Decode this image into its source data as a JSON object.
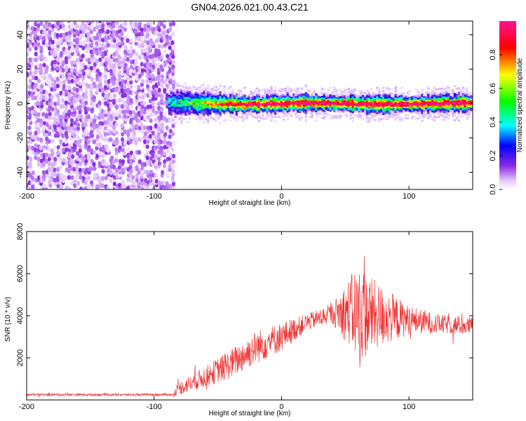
{
  "title": "GN04.2026.021.00.43.C21",
  "chart_data": [
    {
      "type": "heatmap",
      "xlabel": "Height of straight line (km)",
      "ylabel": "Frequency (Hz)",
      "xlim": [
        -200,
        150
      ],
      "ylim": [
        -50,
        48
      ],
      "xticks": [
        -200,
        -100,
        0,
        100
      ],
      "yticks": [
        -40,
        -20,
        0,
        20,
        40
      ],
      "colorbar": {
        "label": "Normalized spectral amplitude",
        "range": [
          0,
          1
        ],
        "ticks": [
          0.0,
          0.2,
          0.4,
          0.6,
          0.8
        ],
        "colors": [
          "#ffffff",
          "#d9b3ff",
          "#8a2be2",
          "#0000ff",
          "#00ffff",
          "#00ff00",
          "#ffff00",
          "#ff0000",
          "#ff1493"
        ]
      },
      "noise_region_x": [
        -200,
        -85
      ],
      "noise_level": 0.15,
      "signal_band": {
        "x_start": -88,
        "center_freq_hz": 0,
        "half_width_hz": 4,
        "peak_amplitude": 0.95
      }
    },
    {
      "type": "line",
      "xlabel": "Height of straight line (km)",
      "ylabel": "SNR (10 * v/v)",
      "xlim": [
        -200,
        150
      ],
      "ylim": [
        0,
        8000
      ],
      "xticks": [
        -200,
        -100,
        0,
        100
      ],
      "yticks": [
        2000,
        4000,
        6000,
        8000
      ],
      "color": "#ee3333",
      "envelope": {
        "x": [
          -200,
          -85,
          -82,
          -60,
          -40,
          -20,
          0,
          20,
          40,
          55,
          60,
          75,
          100,
          125,
          150
        ],
        "y": [
          250,
          250,
          500,
          1100,
          1700,
          2500,
          3000,
          3700,
          4100,
          4200,
          4100,
          4000,
          3800,
          3600,
          3500
        ]
      },
      "jitter": {
        "x": [
          -200,
          -85,
          -82,
          -60,
          -40,
          -20,
          0,
          20,
          40,
          55,
          60,
          75,
          100,
          125,
          150
        ],
        "y": [
          60,
          60,
          300,
          500,
          700,
          800,
          700,
          400,
          500,
          1800,
          2400,
          1600,
          700,
          450,
          450
        ]
      }
    }
  ]
}
